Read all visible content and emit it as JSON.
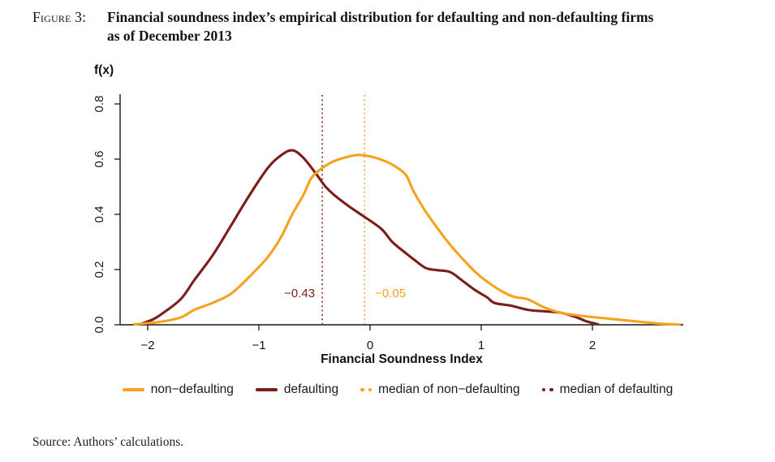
{
  "header": {
    "figure_label": "Figure 3:",
    "title_line1": "Financial soundness index’s empirical distribution for defaulting and non-defaulting firms",
    "title_line2": "as of December 2013"
  },
  "source_note": "Source: Authors’ calculations.",
  "colors": {
    "non_defaulting_orange": "#F5A31F",
    "defaulting_darkred": "#7C1D1D",
    "axis_black": "#161616"
  },
  "chart_data": {
    "type": "line",
    "subtype": "kernel-density",
    "title": "",
    "xlabel": "Financial Soundness Index",
    "ylabel": "f(x)",
    "xlim": [
      -2.3,
      2.9
    ],
    "ylim": [
      0,
      0.85
    ],
    "grid": false,
    "legend_position": "bottom",
    "x_ticks": [
      -2,
      -1,
      0,
      1,
      2
    ],
    "x_tick_labels": [
      "−2",
      "−1",
      "0",
      "1",
      "2"
    ],
    "y_ticks": [
      0.0,
      0.2,
      0.4,
      0.6,
      0.8
    ],
    "y_tick_labels": [
      "0.0",
      "0.2",
      "0.4",
      "0.6",
      "0.8"
    ],
    "series": [
      {
        "name": "non−defaulting",
        "color": "#F5A31F",
        "points": [
          [
            -2.12,
            0.002
          ],
          [
            -2.0,
            0.006
          ],
          [
            -1.85,
            0.013
          ],
          [
            -1.7,
            0.027
          ],
          [
            -1.58,
            0.054
          ],
          [
            -1.4,
            0.082
          ],
          [
            -1.25,
            0.113
          ],
          [
            -1.1,
            0.168
          ],
          [
            -0.92,
            0.245
          ],
          [
            -0.8,
            0.318
          ],
          [
            -0.7,
            0.4
          ],
          [
            -0.6,
            0.47
          ],
          [
            -0.53,
            0.53
          ],
          [
            -0.45,
            0.562
          ],
          [
            -0.35,
            0.588
          ],
          [
            -0.25,
            0.603
          ],
          [
            -0.12,
            0.615
          ],
          [
            0.0,
            0.61
          ],
          [
            0.1,
            0.598
          ],
          [
            0.2,
            0.58
          ],
          [
            0.32,
            0.544
          ],
          [
            0.39,
            0.485
          ],
          [
            0.5,
            0.41
          ],
          [
            0.61,
            0.348
          ],
          [
            0.72,
            0.29
          ],
          [
            0.83,
            0.24
          ],
          [
            0.95,
            0.19
          ],
          [
            1.05,
            0.157
          ],
          [
            1.2,
            0.118
          ],
          [
            1.3,
            0.101
          ],
          [
            1.42,
            0.092
          ],
          [
            1.56,
            0.064
          ],
          [
            1.71,
            0.044
          ],
          [
            1.85,
            0.035
          ],
          [
            2.0,
            0.028
          ],
          [
            2.2,
            0.02
          ],
          [
            2.4,
            0.012
          ],
          [
            2.6,
            0.004
          ],
          [
            2.78,
            0.001
          ]
        ]
      },
      {
        "name": "defaulting",
        "color": "#7C1D1D",
        "points": [
          [
            -2.07,
            0.002
          ],
          [
            -1.95,
            0.02
          ],
          [
            -1.85,
            0.046
          ],
          [
            -1.7,
            0.094
          ],
          [
            -1.58,
            0.162
          ],
          [
            -1.41,
            0.255
          ],
          [
            -1.25,
            0.36
          ],
          [
            -1.09,
            0.466
          ],
          [
            -0.92,
            0.568
          ],
          [
            -0.8,
            0.614
          ],
          [
            -0.7,
            0.632
          ],
          [
            -0.6,
            0.605
          ],
          [
            -0.48,
            0.544
          ],
          [
            -0.4,
            0.5
          ],
          [
            -0.31,
            0.466
          ],
          [
            -0.2,
            0.432
          ],
          [
            -0.073,
            0.397
          ],
          [
            0.1,
            0.348
          ],
          [
            0.2,
            0.3
          ],
          [
            0.32,
            0.26
          ],
          [
            0.39,
            0.238
          ],
          [
            0.5,
            0.206
          ],
          [
            0.6,
            0.198
          ],
          [
            0.72,
            0.191
          ],
          [
            0.83,
            0.16
          ],
          [
            0.94,
            0.127
          ],
          [
            1.05,
            0.1
          ],
          [
            1.12,
            0.079
          ],
          [
            1.27,
            0.069
          ],
          [
            1.42,
            0.054
          ],
          [
            1.56,
            0.049
          ],
          [
            1.71,
            0.044
          ],
          [
            1.85,
            0.028
          ],
          [
            1.95,
            0.012
          ],
          [
            2.05,
            0.002
          ]
        ]
      }
    ],
    "medians": [
      {
        "name": "median of non−defaulting",
        "value": -0.05,
        "label": "−0.05",
        "color": "#F5A31F"
      },
      {
        "name": "median of defaulting",
        "value": -0.43,
        "label": "−0.43",
        "color": "#7C1D1D"
      }
    ],
    "legend": [
      {
        "label": "non−defaulting",
        "swatch": "line",
        "color": "#F5A31F"
      },
      {
        "label": "defaulting",
        "swatch": "line",
        "color": "#7C1D1D"
      },
      {
        "label": "median of non−defaulting",
        "swatch": "dots",
        "color": "#F5A31F"
      },
      {
        "label": "median of defaulting",
        "swatch": "dots",
        "color": "#7C1D1D"
      }
    ]
  }
}
